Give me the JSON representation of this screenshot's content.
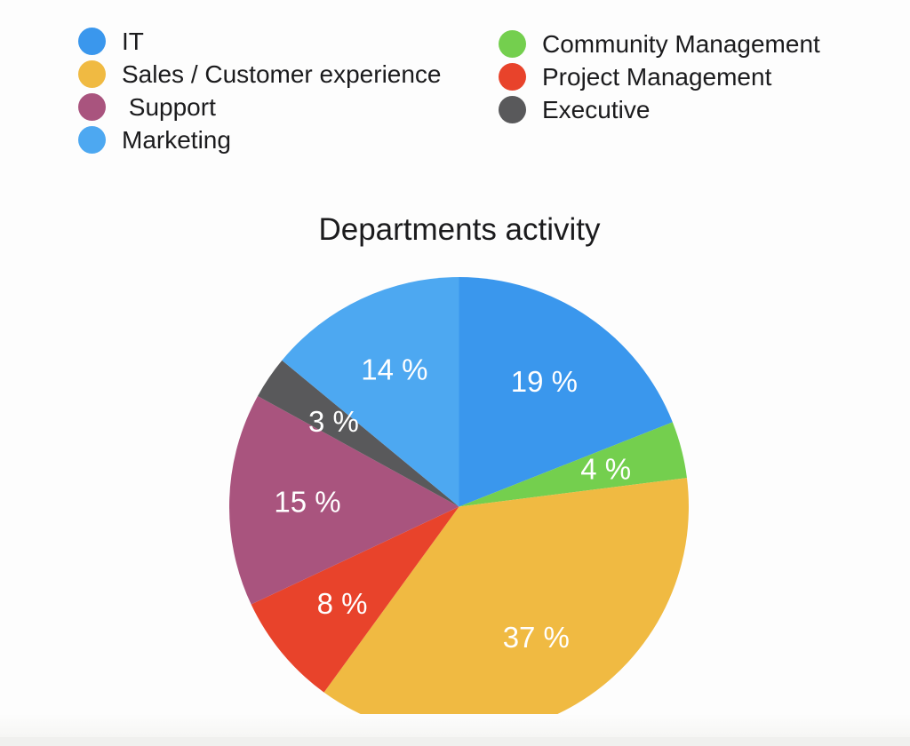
{
  "page": {
    "background": "#fdfdfd",
    "footer_strip_color": "#f0f0ee",
    "text_color": "#1b1b1d"
  },
  "legend": {
    "columns": [
      {
        "items": [
          {
            "label": "IT",
            "color": "#3A97ED"
          },
          {
            "label": "Sales / Customer experience",
            "color": "#F0BA42"
          },
          {
            "label": " Support",
            "color": "#A9547E"
          },
          {
            "label": "Marketing",
            "color": "#4DA8F1"
          }
        ]
      },
      {
        "items": [
          {
            "label": "Community Management",
            "color": "#74CF4E"
          },
          {
            "label": "Project Management",
            "color": "#E8432B"
          },
          {
            "label": "Executive",
            "color": "#59595B"
          }
        ]
      }
    ]
  },
  "chart_data": {
    "type": "pie",
    "title": "Departments activity",
    "unit": "%",
    "start_angle_deg": 0,
    "direction": "clockwise",
    "label_radius_fraction": 0.66,
    "label_color": "#ffffff",
    "legend_position": "top",
    "slices": [
      {
        "name": "IT",
        "value": 19,
        "label": "19 %",
        "color": "#3A97ED"
      },
      {
        "name": "Community Management",
        "value": 4,
        "label": "4 %",
        "color": "#74CF4E"
      },
      {
        "name": "Sales / Customer experience",
        "value": 37,
        "label": "37 %",
        "color": "#F0BA42"
      },
      {
        "name": "Project Management",
        "value": 8,
        "label": "8 %",
        "color": "#E8432B"
      },
      {
        "name": "Support",
        "value": 15,
        "label": "15 %",
        "color": "#A9547E"
      },
      {
        "name": "Executive",
        "value": 3,
        "label": "3 %",
        "color": "#59595B"
      },
      {
        "name": "Marketing",
        "value": 14,
        "label": "14 %",
        "color": "#4DA8F1"
      }
    ]
  }
}
